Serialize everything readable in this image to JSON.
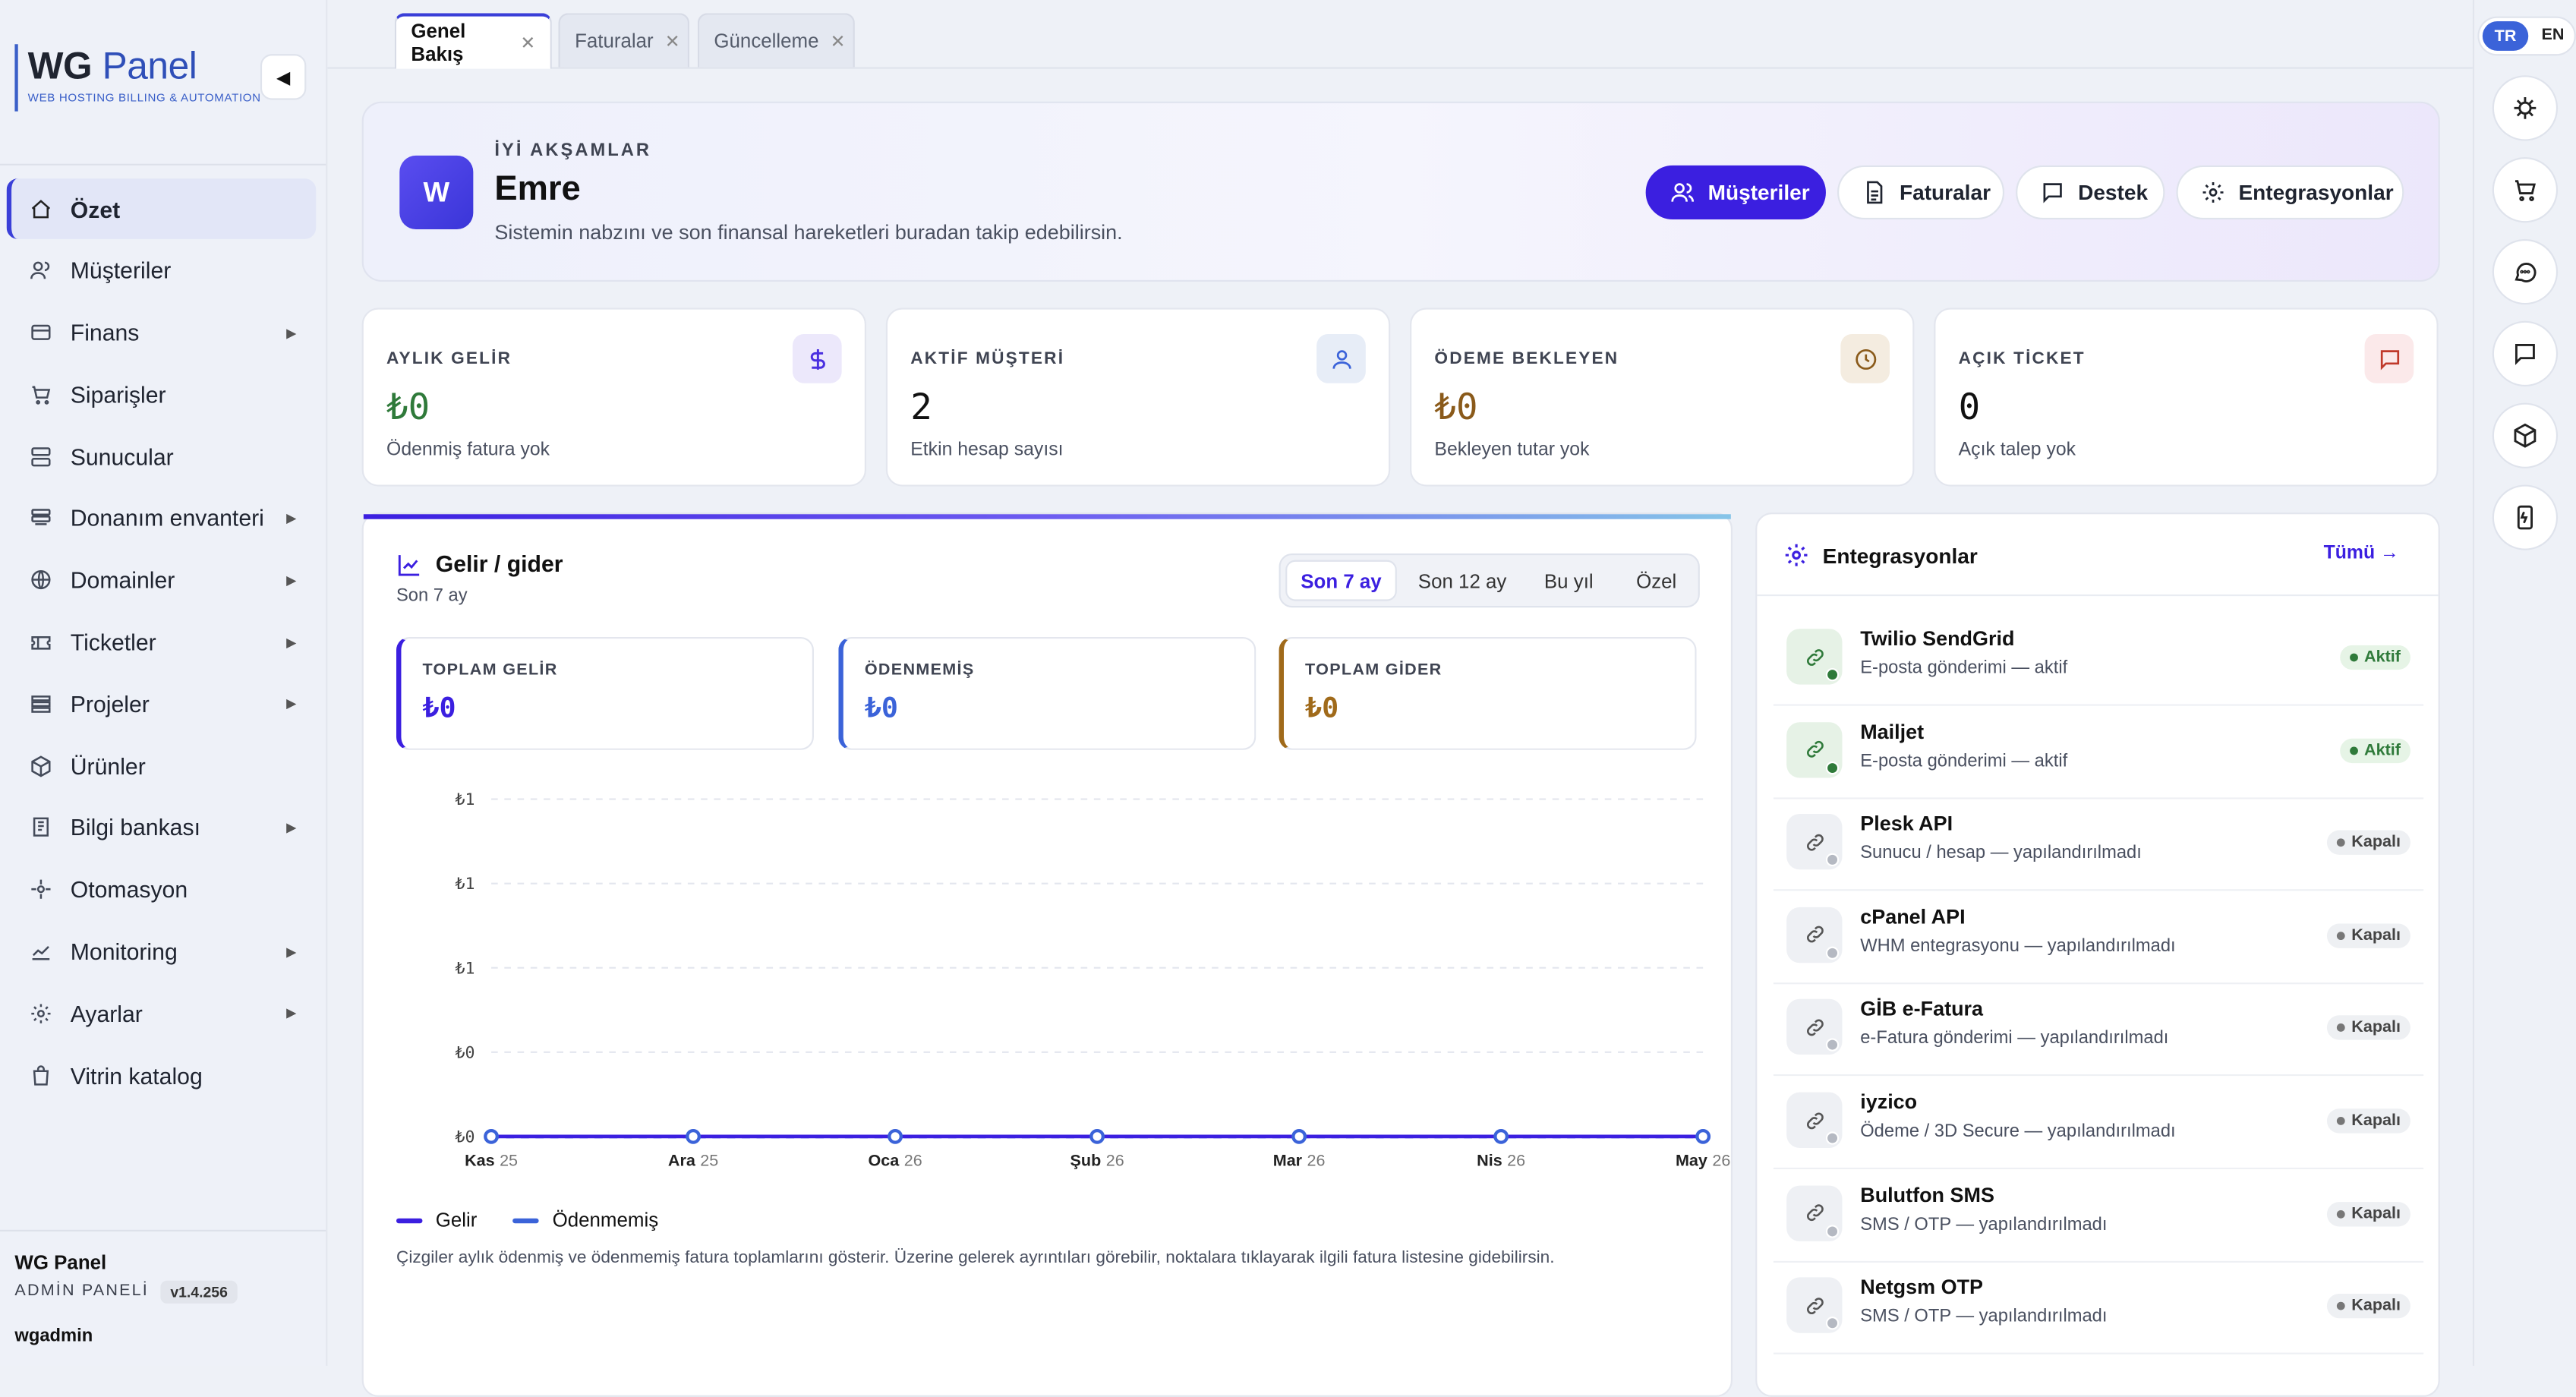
{
  "app": {
    "logo_bold": "WG",
    "logo_light": "Panel",
    "logo_sub": "WEB HOSTING BILLING & AUTOMATION",
    "collapse_glyph": "◀",
    "brand": "WG Panel",
    "role": "ADMİN PANELİ",
    "version": "v1.4.256",
    "user": "wgadmin"
  },
  "sidebar": {
    "items": [
      {
        "label": "Özet",
        "icon": "home-icon",
        "active": true,
        "has_children": false
      },
      {
        "label": "Müşteriler",
        "icon": "users-icon",
        "active": false,
        "has_children": false
      },
      {
        "label": "Finans",
        "icon": "card-icon",
        "active": false,
        "has_children": true
      },
      {
        "label": "Siparişler",
        "icon": "cart-icon",
        "active": false,
        "has_children": false
      },
      {
        "label": "Sunucular",
        "icon": "server-icon",
        "active": false,
        "has_children": false
      },
      {
        "label": "Donanım envanteri",
        "icon": "hardware-icon",
        "active": false,
        "has_children": true
      },
      {
        "label": "Domainler",
        "icon": "globe-icon",
        "active": false,
        "has_children": true
      },
      {
        "label": "Ticketler",
        "icon": "ticket-icon",
        "active": false,
        "has_children": true
      },
      {
        "label": "Projeler",
        "icon": "projects-icon",
        "active": false,
        "has_children": true
      },
      {
        "label": "Ürünler",
        "icon": "box-icon",
        "active": false,
        "has_children": false
      },
      {
        "label": "Bilgi bankası",
        "icon": "book-icon",
        "active": false,
        "has_children": true
      },
      {
        "label": "Otomasyon",
        "icon": "automation-icon",
        "active": false,
        "has_children": false
      },
      {
        "label": "Monitoring",
        "icon": "chart-icon",
        "active": false,
        "has_children": true
      },
      {
        "label": "Ayarlar",
        "icon": "settings-icon",
        "active": false,
        "has_children": true
      },
      {
        "label": "Vitrin katalog",
        "icon": "bag-icon",
        "active": false,
        "has_children": false
      }
    ]
  },
  "tabs": [
    {
      "label": "Genel Bakış",
      "active": true
    },
    {
      "label": "Faturalar",
      "active": false
    },
    {
      "label": "Güncelleme",
      "active": false
    }
  ],
  "lang": {
    "tr": "TR",
    "en": "EN"
  },
  "rail": [
    "virus-icon",
    "cart-icon",
    "chat-icon",
    "message-icon",
    "cube-icon",
    "phone-icon"
  ],
  "hero": {
    "avatar": "W",
    "greeting": "İYİ AKŞAMLAR",
    "name": "Emre",
    "subtitle": "Sistemin nabzını ve son finansal hareketleri buradan takip edebilirsin.",
    "buttons": [
      "Müşteriler",
      "Faturalar",
      "Destek",
      "Entegrasyonlar"
    ]
  },
  "stats": [
    {
      "label": "AYLIK GELİR",
      "value": "₺0",
      "sub": "Ödenmiş fatura yok",
      "color": "#2f7a3a",
      "icon_bg": "#ece8fb",
      "icon_color": "#4a2fe0"
    },
    {
      "label": "AKTİF MÜŞTERİ",
      "value": "2",
      "sub": "Etkin hesap sayısı",
      "color": "#111111",
      "icon_bg": "#e7edf7",
      "icon_color": "#3b63d9"
    },
    {
      "label": "ÖDEME BEKLEYEN",
      "value": "₺0",
      "sub": "Bekleyen tutar yok",
      "color": "#8a5a1a",
      "icon_bg": "#f4ece0",
      "icon_color": "#8a5a1a"
    },
    {
      "label": "AÇIK TİCKET",
      "value": "0",
      "sub": "Açık talep yok",
      "color": "#111111",
      "icon_bg": "#fbe9ea",
      "icon_color": "#c0392b"
    }
  ],
  "revenue": {
    "title": "Gelir / gider",
    "subtitle": "Son 7 ay",
    "ranges": [
      "Son 7 ay",
      "Son 12 ay",
      "Bu yıl",
      "Özel"
    ],
    "active_range": "Son 7 ay",
    "totals": [
      {
        "label": "TOPLAM GELİR",
        "value": "₺0",
        "color": "#3b1fe0"
      },
      {
        "label": "ÖDENMEMİŞ",
        "value": "₺0",
        "color": "#3b63d9"
      },
      {
        "label": "TOPLAM GİDER",
        "value": "₺0",
        "color": "#a06a1a"
      }
    ],
    "legend": [
      "Gelir",
      "Ödenmemiş"
    ],
    "note": "Çizgiler aylık ödenmiş ve ödenmemiş fatura toplamlarını gösterir. Üzerine gelerek ayrıntıları görebilir, noktalara tıklayarak ilgili fatura listesine gidebilirsin."
  },
  "chart_data": {
    "type": "line",
    "categories": [
      {
        "month": "Kas",
        "year": "25"
      },
      {
        "month": "Ara",
        "year": "25"
      },
      {
        "month": "Oca",
        "year": "26"
      },
      {
        "month": "Şub",
        "year": "26"
      },
      {
        "month": "Mar",
        "year": "26"
      },
      {
        "month": "Nis",
        "year": "26"
      },
      {
        "month": "May",
        "year": "26"
      }
    ],
    "y_ticks": [
      "₺1",
      "₺1",
      "₺1",
      "₺0",
      "₺0"
    ],
    "ylim": [
      0,
      1
    ],
    "grid": true,
    "legend_placement": "bottom-left",
    "series": [
      {
        "name": "Gelir",
        "color": "#3b1fe0",
        "values": [
          0,
          0,
          0,
          0,
          0,
          0,
          0
        ]
      },
      {
        "name": "Ödenmemiş",
        "color": "#3b63d9",
        "values": [
          0,
          0,
          0,
          0,
          0,
          0,
          0
        ]
      }
    ]
  },
  "integrations": {
    "title": "Entegrasyonlar",
    "all_link": "Tümü →",
    "items": [
      {
        "name": "Twilio SendGrid",
        "desc": "E-posta gönderimi — aktif",
        "status": "Aktif",
        "active": true
      },
      {
        "name": "Mailjet",
        "desc": "E-posta gönderimi — aktif",
        "status": "Aktif",
        "active": true
      },
      {
        "name": "Plesk API",
        "desc": "Sunucu / hesap — yapılandırılmadı",
        "status": "Kapalı",
        "active": false
      },
      {
        "name": "cPanel API",
        "desc": "WHM entegrasyonu — yapılandırılmadı",
        "status": "Kapalı",
        "active": false
      },
      {
        "name": "GİB e-Fatura",
        "desc": "e-Fatura gönderimi — yapılandırılmadı",
        "status": "Kapalı",
        "active": false
      },
      {
        "name": "iyzico",
        "desc": "Ödeme / 3D Secure — yapılandırılmadı",
        "status": "Kapalı",
        "active": false
      },
      {
        "name": "Bulutfon SMS",
        "desc": "SMS / OTP — yapılandırılmadı",
        "status": "Kapalı",
        "active": false
      },
      {
        "name": "Netgsm OTP",
        "desc": "SMS / OTP — yapılandırılmadı",
        "status": "Kapalı",
        "active": false
      }
    ]
  }
}
